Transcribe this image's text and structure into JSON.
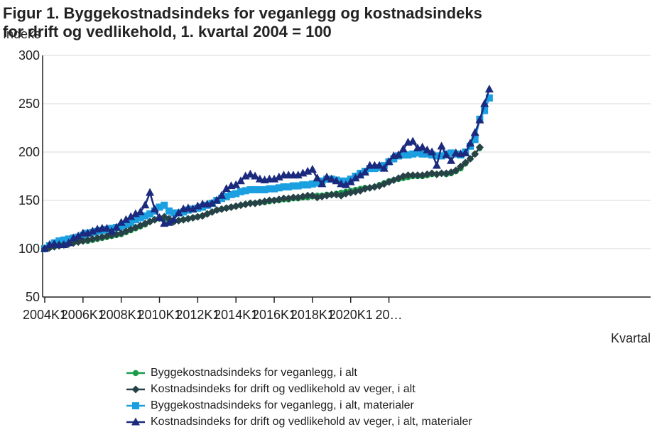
{
  "chart_data": {
    "type": "line",
    "title": "Figur 1. Byggekostnadsindeks for veganlegg og kostnadsindeks for drift og vedlikehold, 1. kvartal 2004 = 100",
    "ylabel": "Indeks",
    "xlabel": "Kvartal",
    "ylim": [
      50,
      300
    ],
    "yticks": [
      50,
      100,
      150,
      200,
      250,
      300
    ],
    "x_tick_labels": [
      "2004K1",
      "2006K1",
      "2008K1",
      "2010K1",
      "2012K1",
      "2014K1",
      "2016K1",
      "2018K1",
      "2020K1",
      "20…"
    ],
    "x_start": "2004K1",
    "grid": "horizontal",
    "legend_position": "bottom",
    "series": [
      {
        "name": "Byggekostnadsindeks for veganlegg, i alt",
        "color": "#1a9d49",
        "marker": "circle",
        "values": [
          100,
          101,
          103,
          104,
          104,
          105,
          106,
          107,
          108,
          108,
          109,
          110,
          111,
          112,
          113,
          114,
          115,
          117,
          119,
          121,
          123,
          125,
          128,
          130,
          131,
          131,
          129,
          128,
          129,
          130,
          131,
          132,
          133,
          134,
          136,
          138,
          140,
          141,
          142,
          143,
          144,
          145,
          146,
          147,
          147,
          148,
          148,
          149,
          150,
          150,
          151,
          151,
          152,
          152,
          153,
          153,
          154,
          155,
          155,
          156,
          156,
          157,
          158,
          159,
          160,
          161,
          162,
          163,
          163,
          164,
          166,
          168,
          170,
          171,
          172,
          173,
          174,
          175,
          175,
          175,
          176,
          177,
          177,
          178,
          177,
          178,
          180,
          183,
          188,
          193,
          198,
          204
        ]
      },
      {
        "name": "Kostnadsindeks for drift og vedlikehold av veger, i alt",
        "color": "#274247",
        "marker": "diamond",
        "values": [
          100,
          101,
          102,
          103,
          104,
          105,
          106,
          107,
          108,
          109,
          110,
          111,
          112,
          113,
          114,
          115,
          116,
          118,
          120,
          122,
          124,
          126,
          128,
          130,
          132,
          133,
          131,
          128,
          129,
          130,
          131,
          132,
          133,
          134,
          136,
          138,
          140,
          141,
          142,
          143,
          144,
          145,
          146,
          147,
          147,
          148,
          149,
          150,
          150,
          151,
          152,
          152,
          153,
          153,
          154,
          155,
          155,
          153,
          154,
          155,
          156,
          156,
          155,
          157,
          158,
          159,
          160,
          162,
          163,
          164,
          165,
          167,
          169,
          171,
          173,
          175,
          176,
          176,
          176,
          176,
          177,
          178,
          177,
          178,
          178,
          179,
          181,
          185,
          189,
          193,
          198,
          205
        ]
      },
      {
        "name": "Byggekostnadsindeks for veganlegg, i alt, materialer",
        "color": "#1a9fe0",
        "marker": "square",
        "values": [
          100,
          103,
          106,
          108,
          109,
          110,
          111,
          112,
          114,
          116,
          117,
          118,
          119,
          120,
          121,
          122,
          123,
          125,
          127,
          130,
          132,
          134,
          136,
          139,
          143,
          145,
          139,
          137,
          137,
          138,
          140,
          141,
          142,
          143,
          145,
          147,
          150,
          152,
          154,
          156,
          157,
          159,
          160,
          161,
          161,
          161,
          161,
          162,
          162,
          163,
          164,
          164,
          165,
          165,
          166,
          166,
          167,
          168,
          170,
          172,
          172,
          171,
          170,
          170,
          172,
          175,
          178,
          180,
          183,
          183,
          184,
          186,
          190,
          193,
          196,
          197,
          197,
          198,
          199,
          198,
          198,
          197,
          196,
          196,
          198,
          199,
          198,
          197,
          200,
          206,
          213,
          234,
          243,
          256
        ]
      },
      {
        "name": "Kostnadsindeks for drift og vedlikehold av veger, i alt, materialer",
        "color": "#1b2a7e",
        "marker": "triangle",
        "values": [
          100,
          104,
          105,
          104,
          104,
          106,
          111,
          113,
          116,
          116,
          118,
          120,
          121,
          121,
          118,
          122,
          127,
          130,
          133,
          136,
          138,
          145,
          158,
          141,
          132,
          126,
          127,
          130,
          137,
          141,
          142,
          141,
          144,
          146,
          146,
          147,
          150,
          155,
          162,
          165,
          166,
          170,
          175,
          177,
          175,
          172,
          171,
          172,
          172,
          174,
          176,
          176,
          176,
          176,
          178,
          180,
          182,
          173,
          167,
          174,
          172,
          170,
          167,
          166,
          169,
          173,
          176,
          179,
          186,
          186,
          186,
          183,
          190,
          196,
          197,
          203,
          210,
          211,
          204,
          205,
          202,
          200,
          186,
          206,
          197,
          191,
          199,
          198,
          199,
          209,
          220,
          233,
          250,
          265
        ]
      }
    ]
  }
}
